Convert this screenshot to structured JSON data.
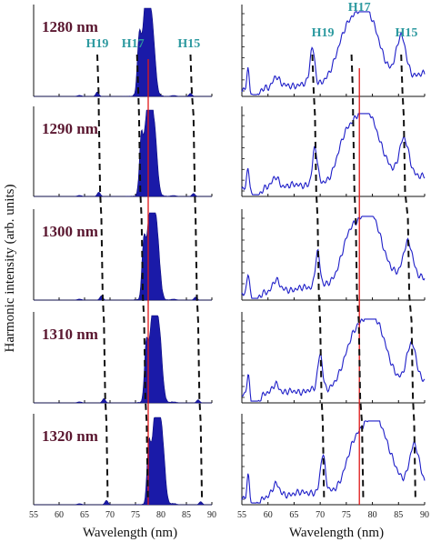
{
  "chart_data": {
    "type": "line",
    "ylabel": "Harmonic intensity (arb. units)",
    "xlabel_left": "Wavelength (nm)",
    "xlabel_right": "Wavelength (nm)",
    "xticks": [
      "55",
      "60",
      "65",
      "70",
      "75",
      "80",
      "85",
      "90"
    ],
    "xlim": [
      55,
      90
    ],
    "reference_line_wavelength": 77.5,
    "harmonic_labels_left": [
      {
        "name": "H19",
        "x": 67.5
      },
      {
        "name": "H17",
        "x": 74.5
      },
      {
        "name": "H15",
        "x": 85.5
      }
    ],
    "harmonic_labels_right": [
      {
        "name": "H19",
        "x": 70.5
      },
      {
        "name": "H17",
        "x": 77.5
      },
      {
        "name": "H15",
        "x": 86.5
      }
    ],
    "panels": [
      {
        "label": "1280 nm",
        "peaks_left": {
          "H19": 67.5,
          "H17": 75.3,
          "H15": 85.8
        },
        "peaks_right": {
          "H19": 68.5,
          "H17": 76.0,
          "H15": 85.5
        }
      },
      {
        "label": "1290 nm",
        "peaks_left": {
          "H19": 67.8,
          "H17": 75.7,
          "H15": 86.4
        },
        "peaks_right": {
          "H19": 69.0,
          "H17": 76.3,
          "H15": 86.0
        }
      },
      {
        "label": "1300 nm",
        "peaks_left": {
          "H19": 68.3,
          "H17": 76.2,
          "H15": 86.8
        },
        "peaks_right": {
          "H19": 69.5,
          "H17": 76.8,
          "H15": 86.8
        }
      },
      {
        "label": "1310 nm",
        "peaks_left": {
          "H19": 68.8,
          "H17": 76.7,
          "H15": 87.3
        },
        "peaks_right": {
          "H19": 70.0,
          "H17": 77.4,
          "H15": 87.5
        }
      },
      {
        "label": "1320 nm",
        "peaks_left": {
          "H19": 69.3,
          "H17": 77.2,
          "H15": 87.8
        },
        "peaks_right": {
          "H19": 70.5,
          "H17": 78.0,
          "H15": 88.0
        }
      }
    ]
  }
}
